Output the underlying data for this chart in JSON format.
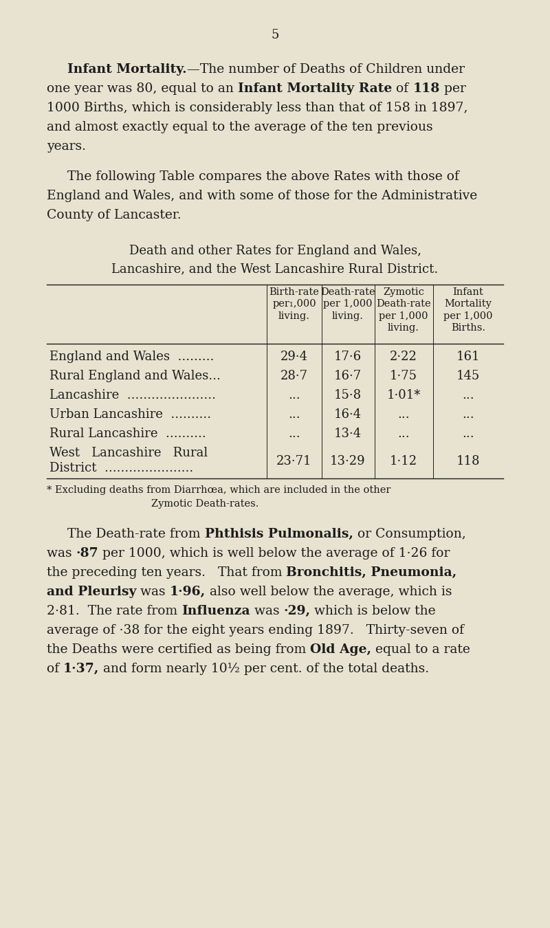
{
  "background_color": "#e8e2d0",
  "text_color": "#1c1c1c",
  "page_number": "5",
  "lm": 68,
  "rm": 735,
  "indent": 30
}
